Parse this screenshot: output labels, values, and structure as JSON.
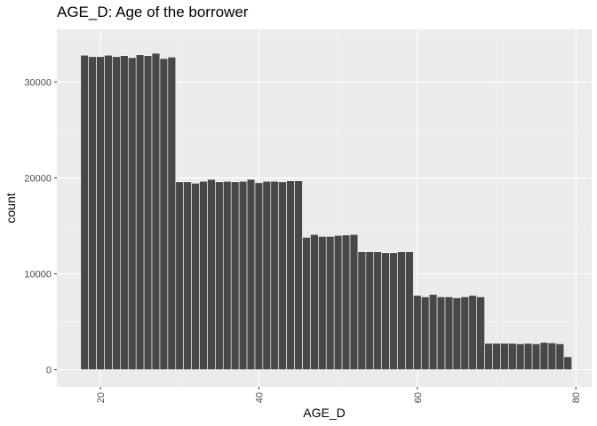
{
  "chart_data": {
    "type": "bar",
    "title": "AGE_D: Age of the borrower",
    "xlabel": "AGE_D",
    "ylabel": "count",
    "xlim": [
      14.5,
      82
    ],
    "ylim": [
      -1800,
      35500
    ],
    "x_ticks": [
      20,
      40,
      60,
      80
    ],
    "x_tick_labels": [
      "20",
      "40",
      "60",
      "80"
    ],
    "y_ticks": [
      0,
      10000,
      20000,
      30000
    ],
    "y_tick_labels": [
      "0",
      "10000",
      "20000",
      "30000"
    ],
    "grid": true,
    "legend": "none",
    "bar_color": "#484848",
    "panel_color": "#ebebeb",
    "x": [
      18,
      19,
      20,
      21,
      22,
      23,
      24,
      25,
      26,
      27,
      28,
      29,
      30,
      31,
      32,
      33,
      34,
      35,
      36,
      37,
      38,
      39,
      40,
      41,
      42,
      43,
      44,
      45,
      46,
      47,
      48,
      49,
      50,
      51,
      52,
      53,
      54,
      55,
      56,
      57,
      58,
      59,
      60,
      61,
      62,
      63,
      64,
      65,
      66,
      67,
      68,
      69,
      70,
      71,
      72,
      73,
      74,
      75,
      76,
      77,
      78,
      79
    ],
    "values": [
      32800,
      32650,
      32650,
      32800,
      32650,
      32750,
      32550,
      32850,
      32750,
      33000,
      32450,
      32600,
      19600,
      19600,
      19450,
      19650,
      19850,
      19600,
      19650,
      19600,
      19650,
      19850,
      19500,
      19650,
      19650,
      19600,
      19700,
      19700,
      13800,
      14100,
      13900,
      13900,
      14000,
      14050,
      14100,
      12300,
      12300,
      12300,
      12200,
      12200,
      12300,
      12300,
      7750,
      7600,
      7850,
      7600,
      7600,
      7500,
      7600,
      7750,
      7600,
      2750,
      2750,
      2750,
      2750,
      2700,
      2750,
      2700,
      2850,
      2800,
      2700,
      1350
    ]
  }
}
